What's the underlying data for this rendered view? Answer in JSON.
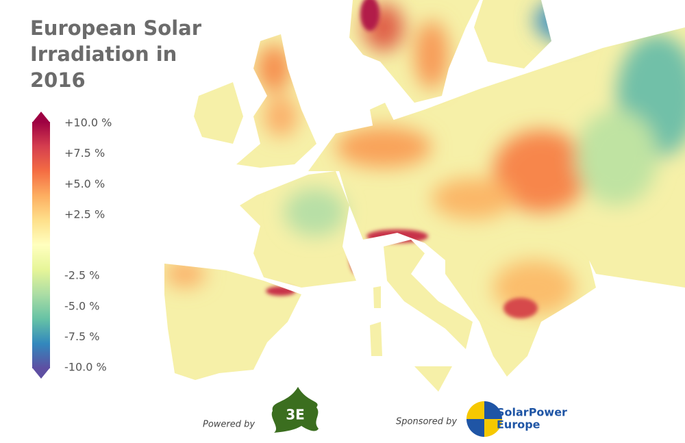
{
  "header": {
    "title": "European Solar Irradiation in 2016"
  },
  "legend": {
    "ticks": [
      {
        "value": 10,
        "label": "+10.0 %"
      },
      {
        "value": 7.5,
        "label": "+7.5 %"
      },
      {
        "value": 5,
        "label": "+5.0 %"
      },
      {
        "value": 2.5,
        "label": "+2.5 %"
      },
      {
        "value": -2.5,
        "label": "-2.5 %"
      },
      {
        "value": -5,
        "label": "-5.0 %"
      },
      {
        "value": -7.5,
        "label": "-7.5 %"
      },
      {
        "value": -10,
        "label": "-10.0 %"
      }
    ]
  },
  "footer": {
    "powered_by": "Powered by",
    "powered_logo": "3E",
    "sponsored_by": "Sponsored by",
    "sponsor_logo": [
      "SolarPower",
      "Europe"
    ]
  }
}
